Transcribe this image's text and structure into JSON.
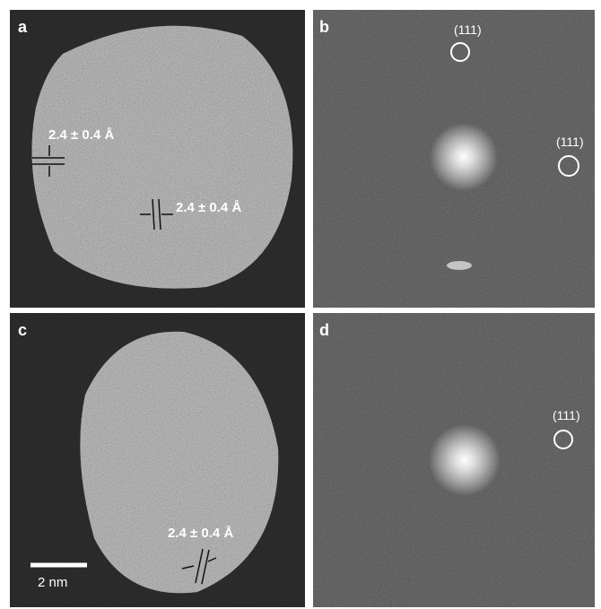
{
  "panels": [
    {
      "label": "a",
      "annotations": [
        "2.4 ± 0.4 Å",
        "2.4 ± 0.4 Å"
      ]
    },
    {
      "label": "b",
      "annotations": [
        "(111)",
        "(111)"
      ]
    },
    {
      "label": "c",
      "annotations": [
        "2.4 ± 0.4 Å"
      ],
      "scale_bar": "2 nm"
    },
    {
      "label": "d",
      "annotations": [
        "(111)"
      ]
    }
  ]
}
